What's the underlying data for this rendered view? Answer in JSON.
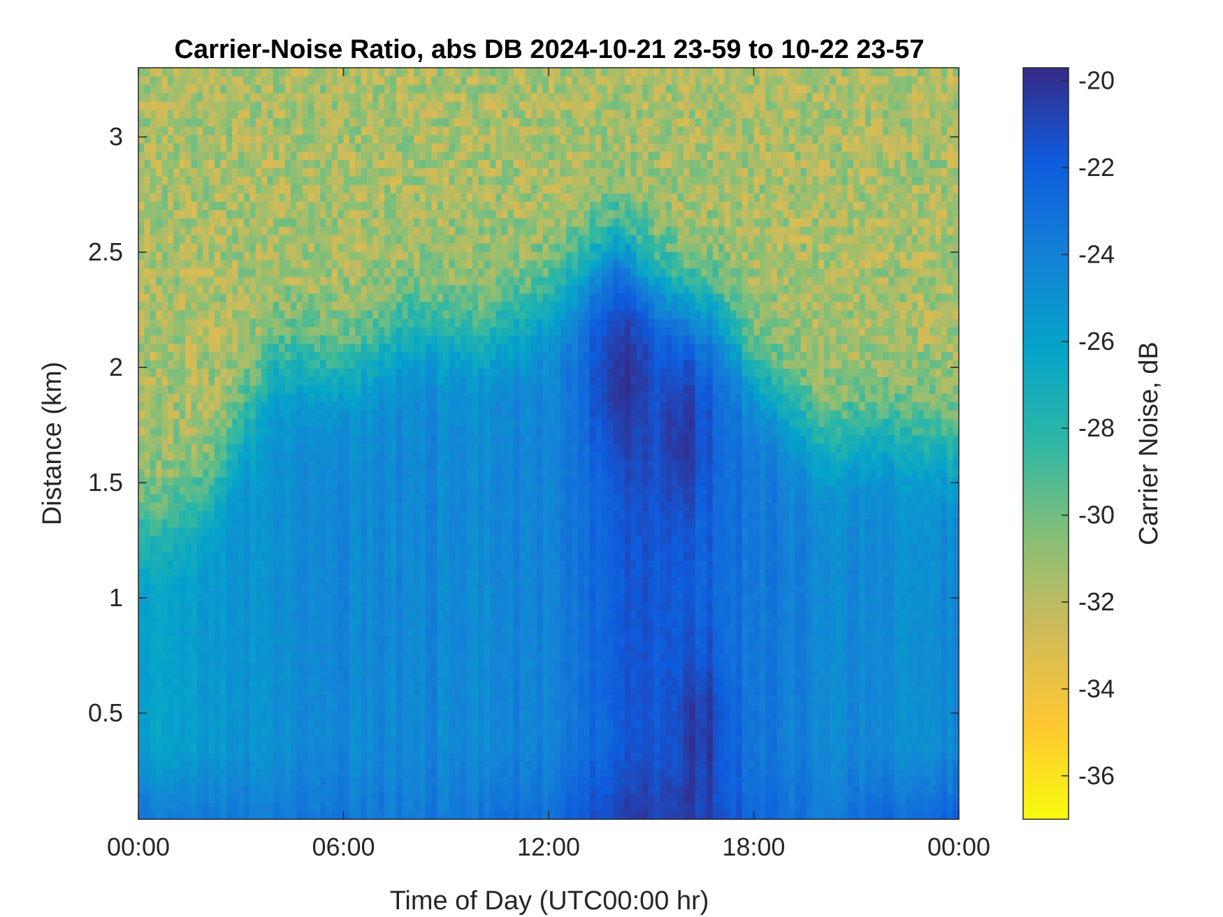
{
  "chart_data": {
    "type": "heatmap",
    "title": "Carrier-Noise Ratio, abs DB 2024-10-21 23-59 to 10-22 23-57",
    "xlabel": "Time of Day (UTC00:00 hr)",
    "ylabel": "Distance (km)",
    "colorbar_label": "Carrier Noise, dB",
    "x_unit": "hours UTC",
    "x_ticks": [
      {
        "value": 0,
        "label": "00:00"
      },
      {
        "value": 6,
        "label": "06:00"
      },
      {
        "value": 12,
        "label": "12:00"
      },
      {
        "value": 18,
        "label": "18:00"
      },
      {
        "value": 24,
        "label": "00:00"
      }
    ],
    "y_ticks": [
      {
        "value": 0.5,
        "label": "0.5"
      },
      {
        "value": 1,
        "label": "1"
      },
      {
        "value": 1.5,
        "label": "1.5"
      },
      {
        "value": 2,
        "label": "2"
      },
      {
        "value": 2.5,
        "label": "2.5"
      },
      {
        "value": 3,
        "label": "3"
      }
    ],
    "xlim": [
      0,
      24
    ],
    "ylim": [
      0.04,
      3.3
    ],
    "color_limits": [
      -37,
      -19.7
    ],
    "colorbar_ticks": [
      {
        "value": -20,
        "label": "-20"
      },
      {
        "value": -22,
        "label": "-22"
      },
      {
        "value": -24,
        "label": "-24"
      },
      {
        "value": -26,
        "label": "-26"
      },
      {
        "value": -28,
        "label": "-28"
      },
      {
        "value": -30,
        "label": "-30"
      },
      {
        "value": -32,
        "label": "-32"
      },
      {
        "value": -34,
        "label": "-34"
      },
      {
        "value": -36,
        "label": "-36"
      }
    ],
    "colormap": "parula",
    "colormap_stops": [
      "#352a87",
      "#0f5cdd",
      "#1481d6",
      "#06a4ca",
      "#2eb7a4",
      "#87bf77",
      "#d1bb59",
      "#fec832",
      "#f9fb0e"
    ],
    "grid": false,
    "field_summary": {
      "times": [
        0,
        2,
        4,
        6,
        8,
        10,
        12,
        13,
        14,
        15,
        16,
        17,
        18,
        20,
        22,
        24
      ],
      "noise_floor_height_km": [
        1.3,
        1.45,
        2.05,
        2.0,
        2.2,
        2.15,
        2.3,
        2.45,
        2.55,
        2.4,
        2.3,
        2.25,
        2.0,
        1.7,
        1.75,
        1.65
      ],
      "typical_layer_value_db": [
        -26.0,
        -25.5,
        -24.8,
        -24.5,
        -24.3,
        -24.5,
        -24.0,
        -23.2,
        -22.0,
        -21.8,
        -22.2,
        -22.3,
        -23.5,
        -24.2,
        -24.7,
        -24.5
      ],
      "near_surface_value_db": [
        -23.0,
        -23.3,
        -23.5,
        -23.5,
        -23.5,
        -23.2,
        -22.5,
        -21.5,
        -20.8,
        -20.5,
        -20.6,
        -20.7,
        -22.5,
        -23.5,
        -22.5,
        -22.0
      ],
      "noise_floor_value_db": -31.5,
      "strongest_cores": [
        {
          "time_hr": 14.1,
          "distance_km": 1.95,
          "value_db": -20.3
        },
        {
          "time_hr": 15.9,
          "distance_km": 1.7,
          "value_db": -20.6
        },
        {
          "time_hr": 16.5,
          "distance_km": 0.4,
          "value_db": -20.4
        }
      ]
    }
  }
}
